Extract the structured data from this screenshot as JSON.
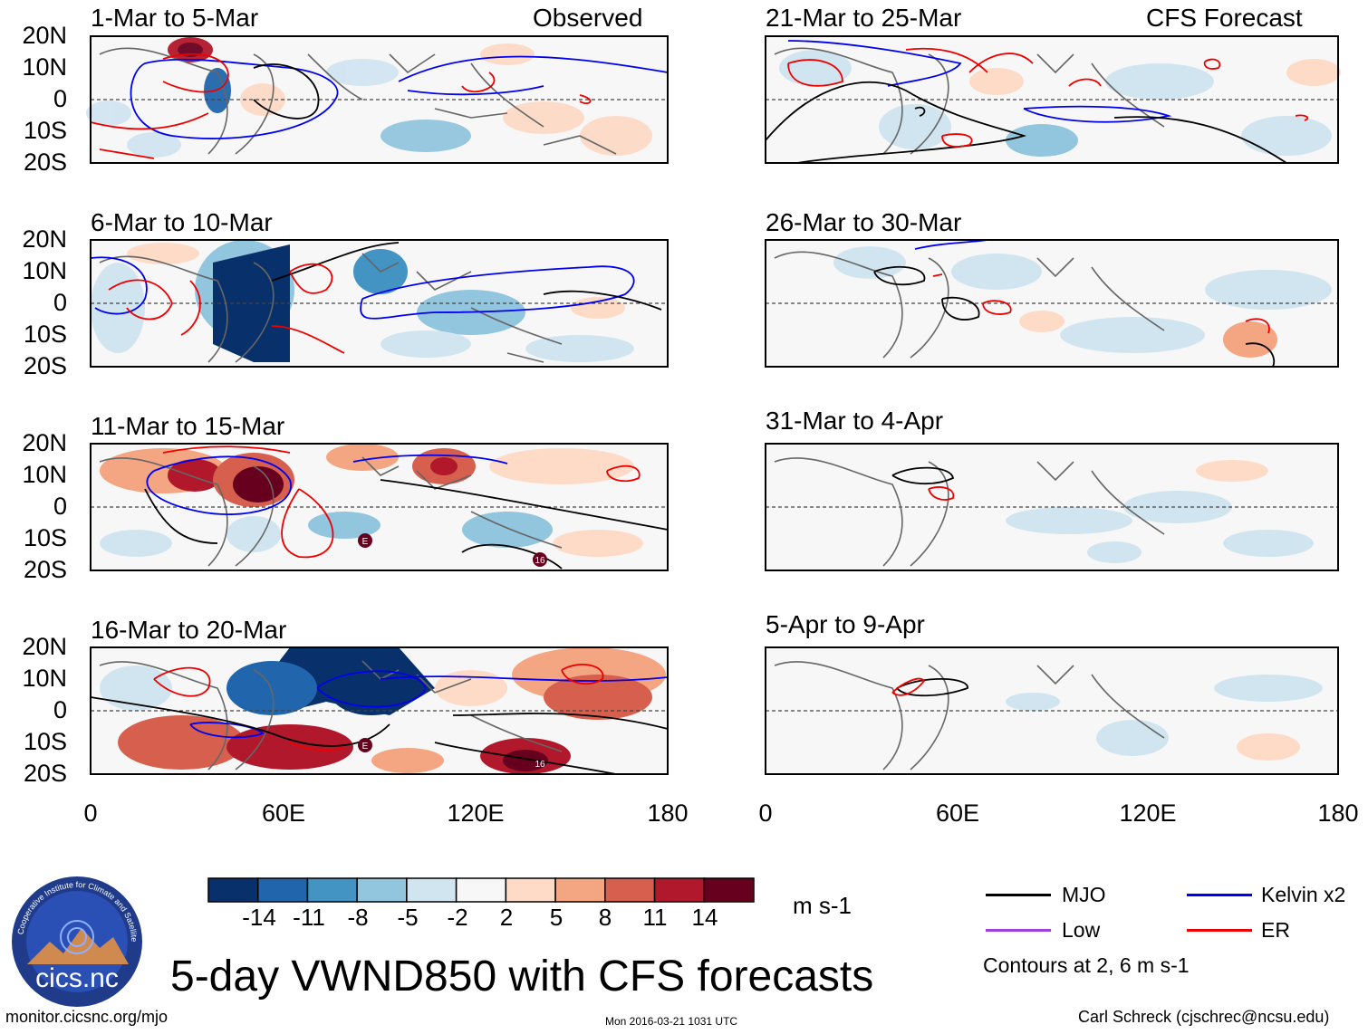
{
  "title": "5-day VWND850 with CFS forecasts",
  "observed_label": "Observed",
  "forecast_label": "CFS Forecast",
  "lat_labels": [
    "20N",
    "10N",
    "0",
    "10S",
    "20S"
  ],
  "lon_labels": [
    "0",
    "60E",
    "120E",
    "180"
  ],
  "observed_panels": [
    {
      "title": "1-Mar to 5-Mar"
    },
    {
      "title": "6-Mar to 10-Mar"
    },
    {
      "title": "11-Mar to 15-Mar"
    },
    {
      "title": "16-Mar to 20-Mar"
    }
  ],
  "forecast_panels": [
    {
      "title": "21-Mar to 25-Mar"
    },
    {
      "title": "26-Mar to 30-Mar"
    },
    {
      "title": "31-Mar to 4-Apr"
    },
    {
      "title": "5-Apr to 9-Apr"
    }
  ],
  "storm_markers": [
    {
      "label": "E"
    },
    {
      "label": "16"
    },
    {
      "label": "E"
    },
    {
      "label": "16"
    }
  ],
  "colorbar": {
    "labels": [
      "-14",
      "-11",
      "-8",
      "-5",
      "-2",
      "2",
      "5",
      "8",
      "11",
      "14"
    ],
    "colors": [
      "#08306b",
      "#2166ac",
      "#4393c3",
      "#92c5de",
      "#d1e5f0",
      "#f7f7f7",
      "#fddbc7",
      "#f4a582",
      "#d6604d",
      "#b2182b",
      "#67001f"
    ],
    "units": "m s-1"
  },
  "legend": {
    "items": [
      {
        "label": "MJO",
        "color": "#000000"
      },
      {
        "label": "Kelvin x2",
        "color": "#0000ee"
      },
      {
        "label": "Low",
        "color": "#a040e0"
      },
      {
        "label": "ER",
        "color": "#ee0000"
      }
    ],
    "note": "Contours at 2, 6 m s-1"
  },
  "logo_text": "cics.nc",
  "logo_ring_text": "Cooperative Institute for Climate and Satellites",
  "footer": {
    "left": "monitor.cicsnc.org/mjo",
    "center": "Mon 2016-03-21 1031 UTC",
    "right": "Carl Schreck (cjschrec@ncsu.edu)"
  }
}
